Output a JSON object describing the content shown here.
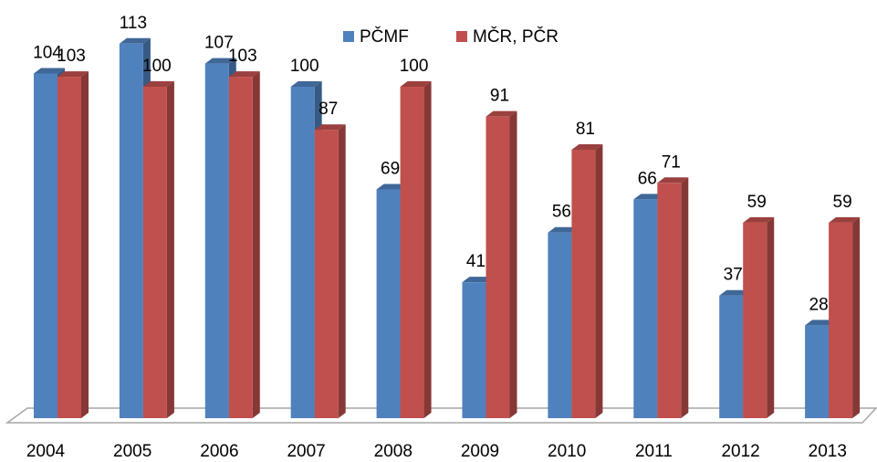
{
  "chart_data": {
    "type": "bar3d",
    "categories": [
      "2004",
      "2005",
      "2006",
      "2007",
      "2008",
      "2009",
      "2010",
      "2011",
      "2012",
      "2013"
    ],
    "series": [
      {
        "name": "PČMF",
        "color": "#4f81bd",
        "values": [
          104,
          113,
          107,
          100,
          69,
          41,
          56,
          66,
          37,
          28
        ]
      },
      {
        "name": "MČR, PČR",
        "color": "#c0504d",
        "values": [
          103,
          100,
          103,
          87,
          100,
          91,
          81,
          71,
          59,
          59
        ]
      }
    ],
    "legend": "top"
  }
}
